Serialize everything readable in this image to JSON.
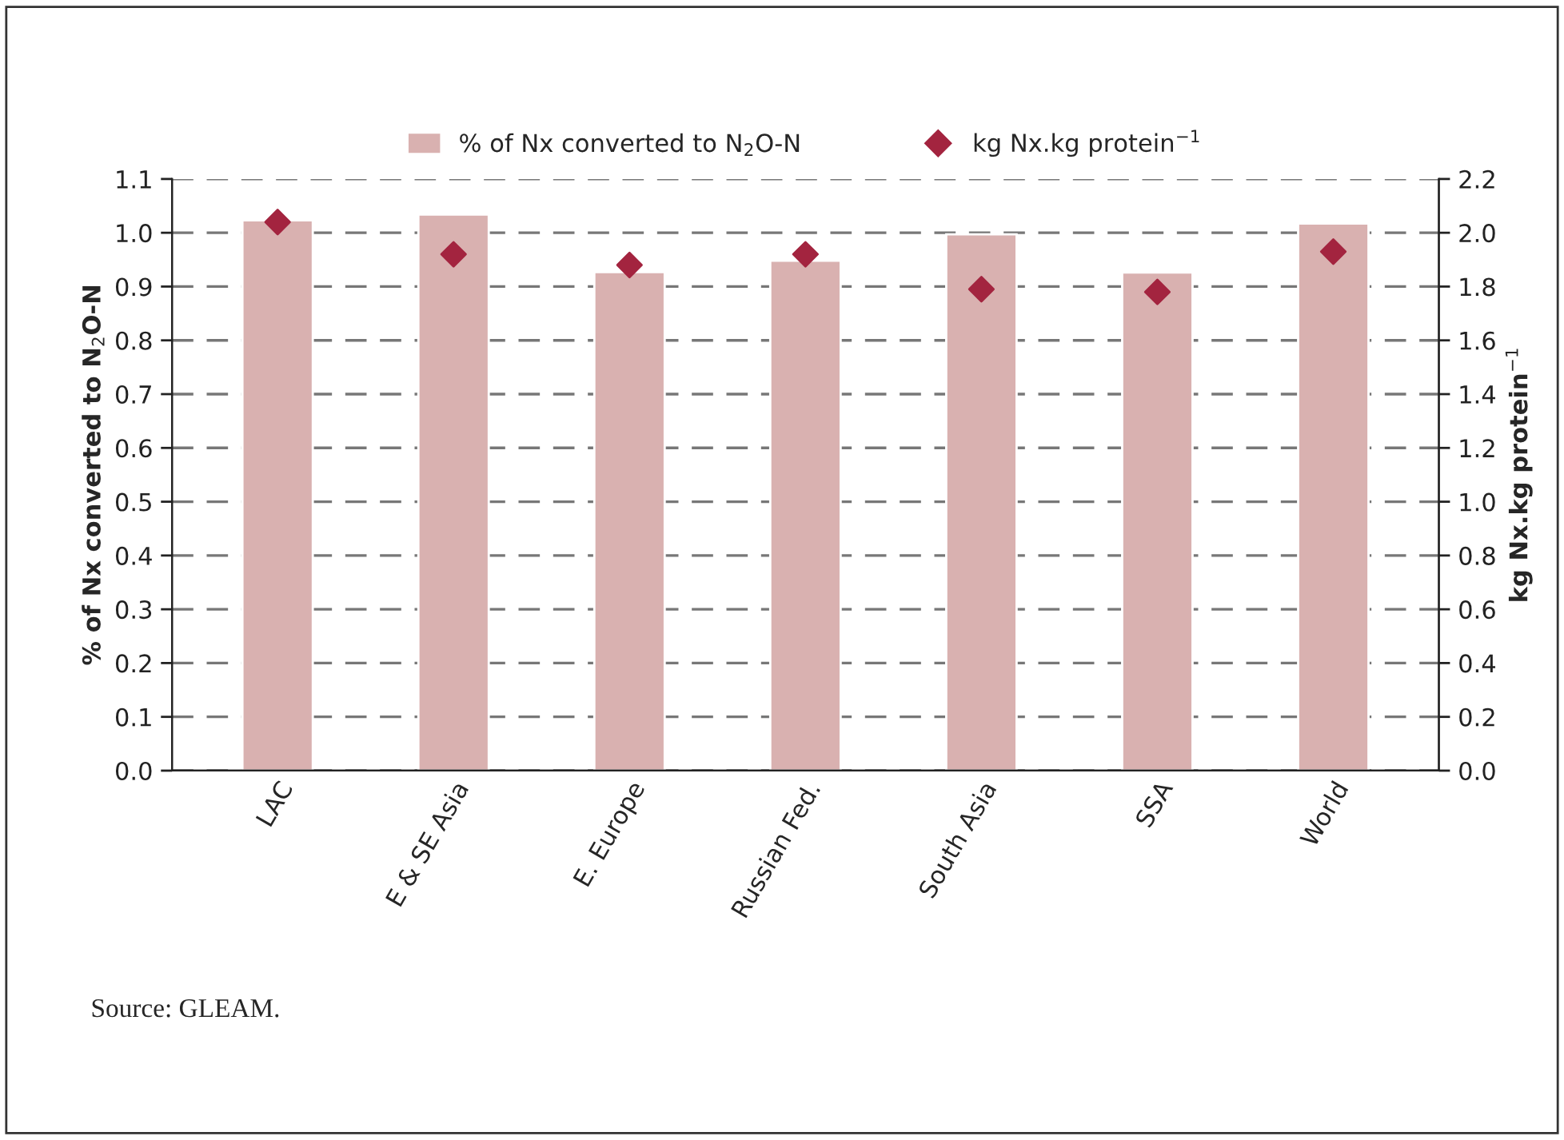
{
  "chart_data": {
    "type": "bar",
    "categories": [
      "LAC",
      "E & SE Asia",
      "E. Europe",
      "Russian Fed.",
      "South Asia",
      "SSA",
      "World"
    ],
    "series": [
      {
        "name": "% of Nx converted to N$_{2}$O-N",
        "color": "#d9b1b0",
        "values": [
          1.023,
          1.034,
          0.927,
          0.948,
          0.997,
          0.926,
          1.017
        ]
      },
      {
        "name": "kg Nx.kg protein$^{−1}$",
        "type": "scatter",
        "axis": "y2",
        "marker": "diamond",
        "color": "#a3243f",
        "values": [
          2.04,
          1.92,
          1.88,
          1.92,
          1.79,
          1.78,
          1.93
        ]
      }
    ],
    "ylabel": "% of Nx converted to N$_{2}$O-N",
    "y2label": "kg Nx.kg protein$^{−1}$",
    "ylim": [
      0,
      1.1
    ],
    "yticks": [
      {
        "value": 0,
        "label": "0.0"
      },
      0.1,
      0.2,
      0.3,
      0.4,
      0.5,
      0.6,
      0.7,
      0.8,
      0.9,
      {
        "value": 1,
        "label": "1.0"
      },
      1.1
    ],
    "y2lim": [
      0,
      2.2
    ],
    "y2ticks": [
      {
        "value": 0,
        "label": "0.0"
      },
      0.2,
      0.4,
      0.6,
      0.8,
      {
        "value": 1,
        "label": "1.0"
      },
      1.2,
      1.4,
      1.6,
      1.8,
      {
        "value": 2,
        "label": "2.0"
      },
      2.2
    ],
    "grid": "y",
    "legend": "top",
    "annotations": [
      "Source: GLEAM."
    ]
  }
}
